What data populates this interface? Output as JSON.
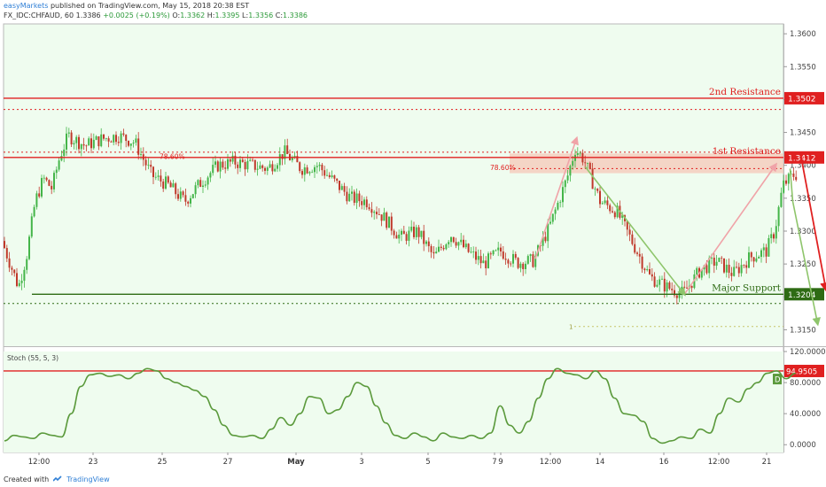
{
  "header": {
    "publisher": "easyMarkets",
    "published_text": "published on TradingView.com, May 15, 2018 20:38 EST",
    "symbol": "FX_IDC:CHFAUD, 60",
    "last": "1.3386",
    "change": "+0.0025 (+0.19%)",
    "o_label": "O:",
    "o": "1.3362",
    "h_label": "H:",
    "h": "1.3395",
    "l_label": "L:",
    "l": "1.3356",
    "c_label": "C:",
    "c": "1.3386"
  },
  "footer": {
    "created_with": "Created with",
    "brand": "TradingView"
  },
  "colors": {
    "plot_bg": "#effcef",
    "up_candle": "#44b549",
    "down_candle": "#c0392b",
    "resistance": "#e02020",
    "support": "#2e6b14",
    "stoch": "#5b9a3c",
    "arrow_pink": "#f0a3a8",
    "arrow_green": "#8ec56b",
    "zone": "#f6c8b8"
  },
  "chart_data": [
    {
      "type": "candlestick",
      "symbol": "FX_IDC:CHFAUD",
      "timeframe": "60",
      "ylim": [
        1.3125,
        1.3615
      ],
      "y_ticks": [
        "1.3600",
        "1.3550",
        "1.3500",
        "1.3450",
        "1.3400",
        "1.3350",
        "1.3300",
        "1.3250",
        "1.3200",
        "1.3150"
      ],
      "x_ticks": [
        "12:00",
        "23",
        "25",
        "27",
        "May",
        "3",
        "5",
        "7",
        "9",
        "12:00",
        "14",
        "16",
        "12:00",
        "21"
      ],
      "price_path": [
        [
          "Apr 22 00:00",
          1.3285
        ],
        [
          "Apr 22 12:00",
          1.3215
        ],
        [
          "Apr 22 18:00",
          1.3265
        ],
        [
          "Apr 23 00:00",
          1.3345
        ],
        [
          "Apr 23 06:00",
          1.338
        ],
        [
          "Apr 23 12:00",
          1.3365
        ],
        [
          "Apr 23 18:00",
          1.3415
        ],
        [
          "Apr 24 00:00",
          1.3445
        ],
        [
          "Apr 24 12:00",
          1.343
        ],
        [
          "Apr 25 00:00",
          1.344
        ],
        [
          "Apr 25 12:00",
          1.3445
        ],
        [
          "Apr 26 00:00",
          1.3435
        ],
        [
          "Apr 26 12:00",
          1.3385
        ],
        [
          "Apr 27 00:00",
          1.337
        ],
        [
          "Apr 27 12:00",
          1.3345
        ],
        [
          "Apr 28 00:00",
          1.3375
        ],
        [
          "Apr 28 12:00",
          1.34
        ],
        [
          "Apr 29 00:00",
          1.3405
        ],
        [
          "Apr 30 00:00",
          1.3395
        ],
        [
          "Apr 30 12:00",
          1.342
        ],
        [
          "May 1 00:00",
          1.3395
        ],
        [
          "May 1 12:00",
          1.34
        ],
        [
          "May 2 00:00",
          1.3375
        ],
        [
          "May 2 12:00",
          1.335
        ],
        [
          "May 3 00:00",
          1.3345
        ],
        [
          "May 3 12:00",
          1.332
        ],
        [
          "May 4 00:00",
          1.329
        ],
        [
          "May 4 12:00",
          1.33
        ],
        [
          "May 5 00:00",
          1.326
        ],
        [
          "May 5 12:00",
          1.3295
        ],
        [
          "May 6 00:00",
          1.327
        ],
        [
          "May 6 12:00",
          1.325
        ],
        [
          "May 7 00:00",
          1.327
        ],
        [
          "May 7 12:00",
          1.3252
        ],
        [
          "May 8 00:00",
          1.3255
        ],
        [
          "May 8 12:00",
          1.331
        ],
        [
          "May 9 00:00",
          1.338
        ],
        [
          "May 9 06:00",
          1.3425
        ],
        [
          "May 9 12:00",
          1.341
        ],
        [
          "May 10 00:00",
          1.3345
        ],
        [
          "May 10 12:00",
          1.333
        ],
        [
          "May 11 00:00",
          1.328
        ],
        [
          "May 11 12:00",
          1.323
        ],
        [
          "May 12 00:00",
          1.3215
        ],
        [
          "May 12 12:00",
          1.3205
        ],
        [
          "May 13 00:00",
          1.324
        ],
        [
          "May 13 12:00",
          1.3255
        ],
        [
          "May 14 00:00",
          1.3235
        ],
        [
          "May 14 12:00",
          1.326
        ],
        [
          "May 15 00:00",
          1.327
        ],
        [
          "May 15 06:00",
          1.33
        ],
        [
          "May 15 12:00",
          1.337
        ],
        [
          "May 15 20:00",
          1.3386
        ]
      ],
      "levels": [
        {
          "label": "2nd Resistance",
          "value": 1.3502,
          "value_text": "1.3502",
          "role": "resistance"
        },
        {
          "label": "1st Resistance",
          "value": 1.3412,
          "value_text": "1.3412",
          "role": "resistance"
        },
        {
          "label": "Major Support",
          "value": 1.3204,
          "value_text": "1.3204",
          "role": "support"
        }
      ],
      "dotted_levels": [
        1.3485,
        1.342,
        1.3395,
        1.319
      ],
      "fib_labels": [
        "78.60%",
        "78.60%"
      ],
      "target_label": "1",
      "target_level": 1.3155,
      "zone": {
        "from": 1.3388,
        "to": 1.3418
      }
    },
    {
      "type": "line",
      "indicator": "Stoch (55, 5, 3)",
      "ylim": [
        -10,
        120
      ],
      "y_ticks": [
        "120.0000",
        "80.0000",
        "40.0000",
        "0.0000"
      ],
      "overbought_value": 94.9505,
      "overbought_text": "94.9505",
      "d_label": "D",
      "values": [
        5,
        12,
        10,
        8,
        15,
        12,
        10,
        40,
        75,
        90,
        92,
        88,
        90,
        85,
        92,
        98,
        95,
        85,
        80,
        75,
        70,
        62,
        45,
        25,
        12,
        10,
        12,
        8,
        20,
        35,
        25,
        40,
        62,
        60,
        40,
        45,
        62,
        80,
        75,
        50,
        28,
        12,
        8,
        15,
        10,
        5,
        15,
        10,
        8,
        12,
        8,
        15,
        50,
        25,
        15,
        30,
        60,
        85,
        98,
        92,
        90,
        85,
        95,
        85,
        60,
        40,
        38,
        30,
        8,
        2,
        5,
        10,
        8,
        20,
        15,
        40,
        60,
        55,
        72,
        80,
        92,
        95,
        85,
        92
      ]
    }
  ]
}
